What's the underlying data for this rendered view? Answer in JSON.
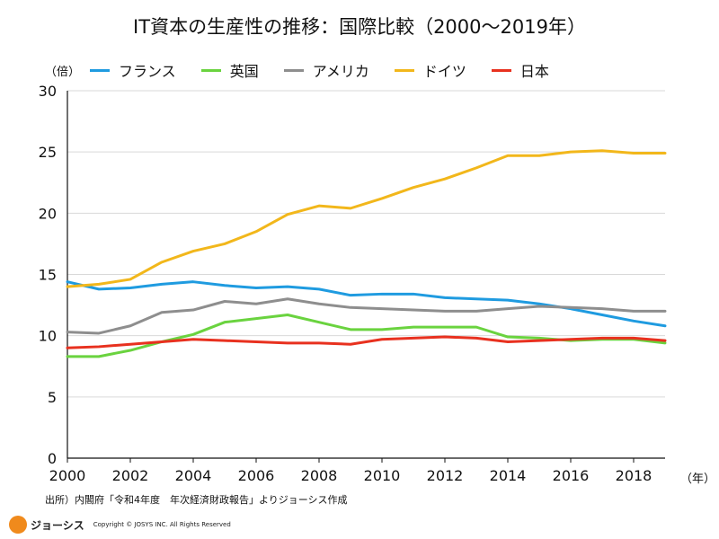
{
  "chart_data": {
    "type": "line",
    "title": "IT資本の生産性の推移：国際比較（2000〜2019年）",
    "y_unit": "（倍）",
    "x_unit": "（年）",
    "xlim": [
      2000,
      2019
    ],
    "ylim": [
      0,
      30
    ],
    "x_ticks": [
      "2000",
      "2002",
      "2004",
      "2006",
      "2008",
      "2010",
      "2012",
      "2014",
      "2016",
      "2018"
    ],
    "y_ticks": [
      "0",
      "5",
      "10",
      "15",
      "20",
      "25",
      "30"
    ],
    "grid": true,
    "legend_position": "top",
    "x": [
      2000,
      2001,
      2002,
      2003,
      2004,
      2005,
      2006,
      2007,
      2008,
      2009,
      2010,
      2011,
      2012,
      2013,
      2014,
      2015,
      2016,
      2017,
      2018,
      2019
    ],
    "series": [
      {
        "name": "フランス",
        "color": "#1f9be0",
        "values": [
          14.4,
          13.8,
          13.9,
          14.2,
          14.4,
          14.1,
          13.9,
          14.0,
          13.8,
          13.3,
          13.4,
          13.4,
          13.1,
          13.0,
          12.9,
          12.6,
          12.2,
          11.7,
          11.2,
          10.8
        ]
      },
      {
        "name": "英国",
        "color": "#6ad33f",
        "values": [
          8.3,
          8.3,
          8.8,
          9.5,
          10.1,
          11.1,
          11.4,
          11.7,
          11.1,
          10.5,
          10.5,
          10.7,
          10.7,
          10.7,
          9.9,
          9.8,
          9.6,
          9.7,
          9.7,
          9.4
        ]
      },
      {
        "name": "アメリカ",
        "color": "#8e8e8e",
        "values": [
          10.3,
          10.2,
          10.8,
          11.9,
          12.1,
          12.8,
          12.6,
          13.0,
          12.6,
          12.3,
          12.2,
          12.1,
          12.0,
          12.0,
          12.2,
          12.4,
          12.3,
          12.2,
          12.0,
          12.0
        ]
      },
      {
        "name": "ドイツ",
        "color": "#f2b71b",
        "values": [
          14.0,
          14.2,
          14.6,
          16.0,
          16.9,
          17.5,
          18.5,
          19.9,
          20.6,
          20.4,
          21.2,
          22.1,
          22.8,
          23.7,
          24.7,
          24.7,
          25.0,
          25.1,
          24.9,
          24.9
        ]
      },
      {
        "name": "日本",
        "color": "#e8311f",
        "values": [
          9.0,
          9.1,
          9.3,
          9.5,
          9.7,
          9.6,
          9.5,
          9.4,
          9.4,
          9.3,
          9.7,
          9.8,
          9.9,
          9.8,
          9.5,
          9.6,
          9.7,
          9.8,
          9.8,
          9.6
        ]
      }
    ]
  },
  "source_note": "出所）内閣府「令和4年度　年次経済財政報告」よりジョーシス作成",
  "footer": {
    "brand": "ジョーシス",
    "copyright": "Copyright © JOSYS INC. All Rights Reserved",
    "logo_color": "#f08a1c"
  }
}
